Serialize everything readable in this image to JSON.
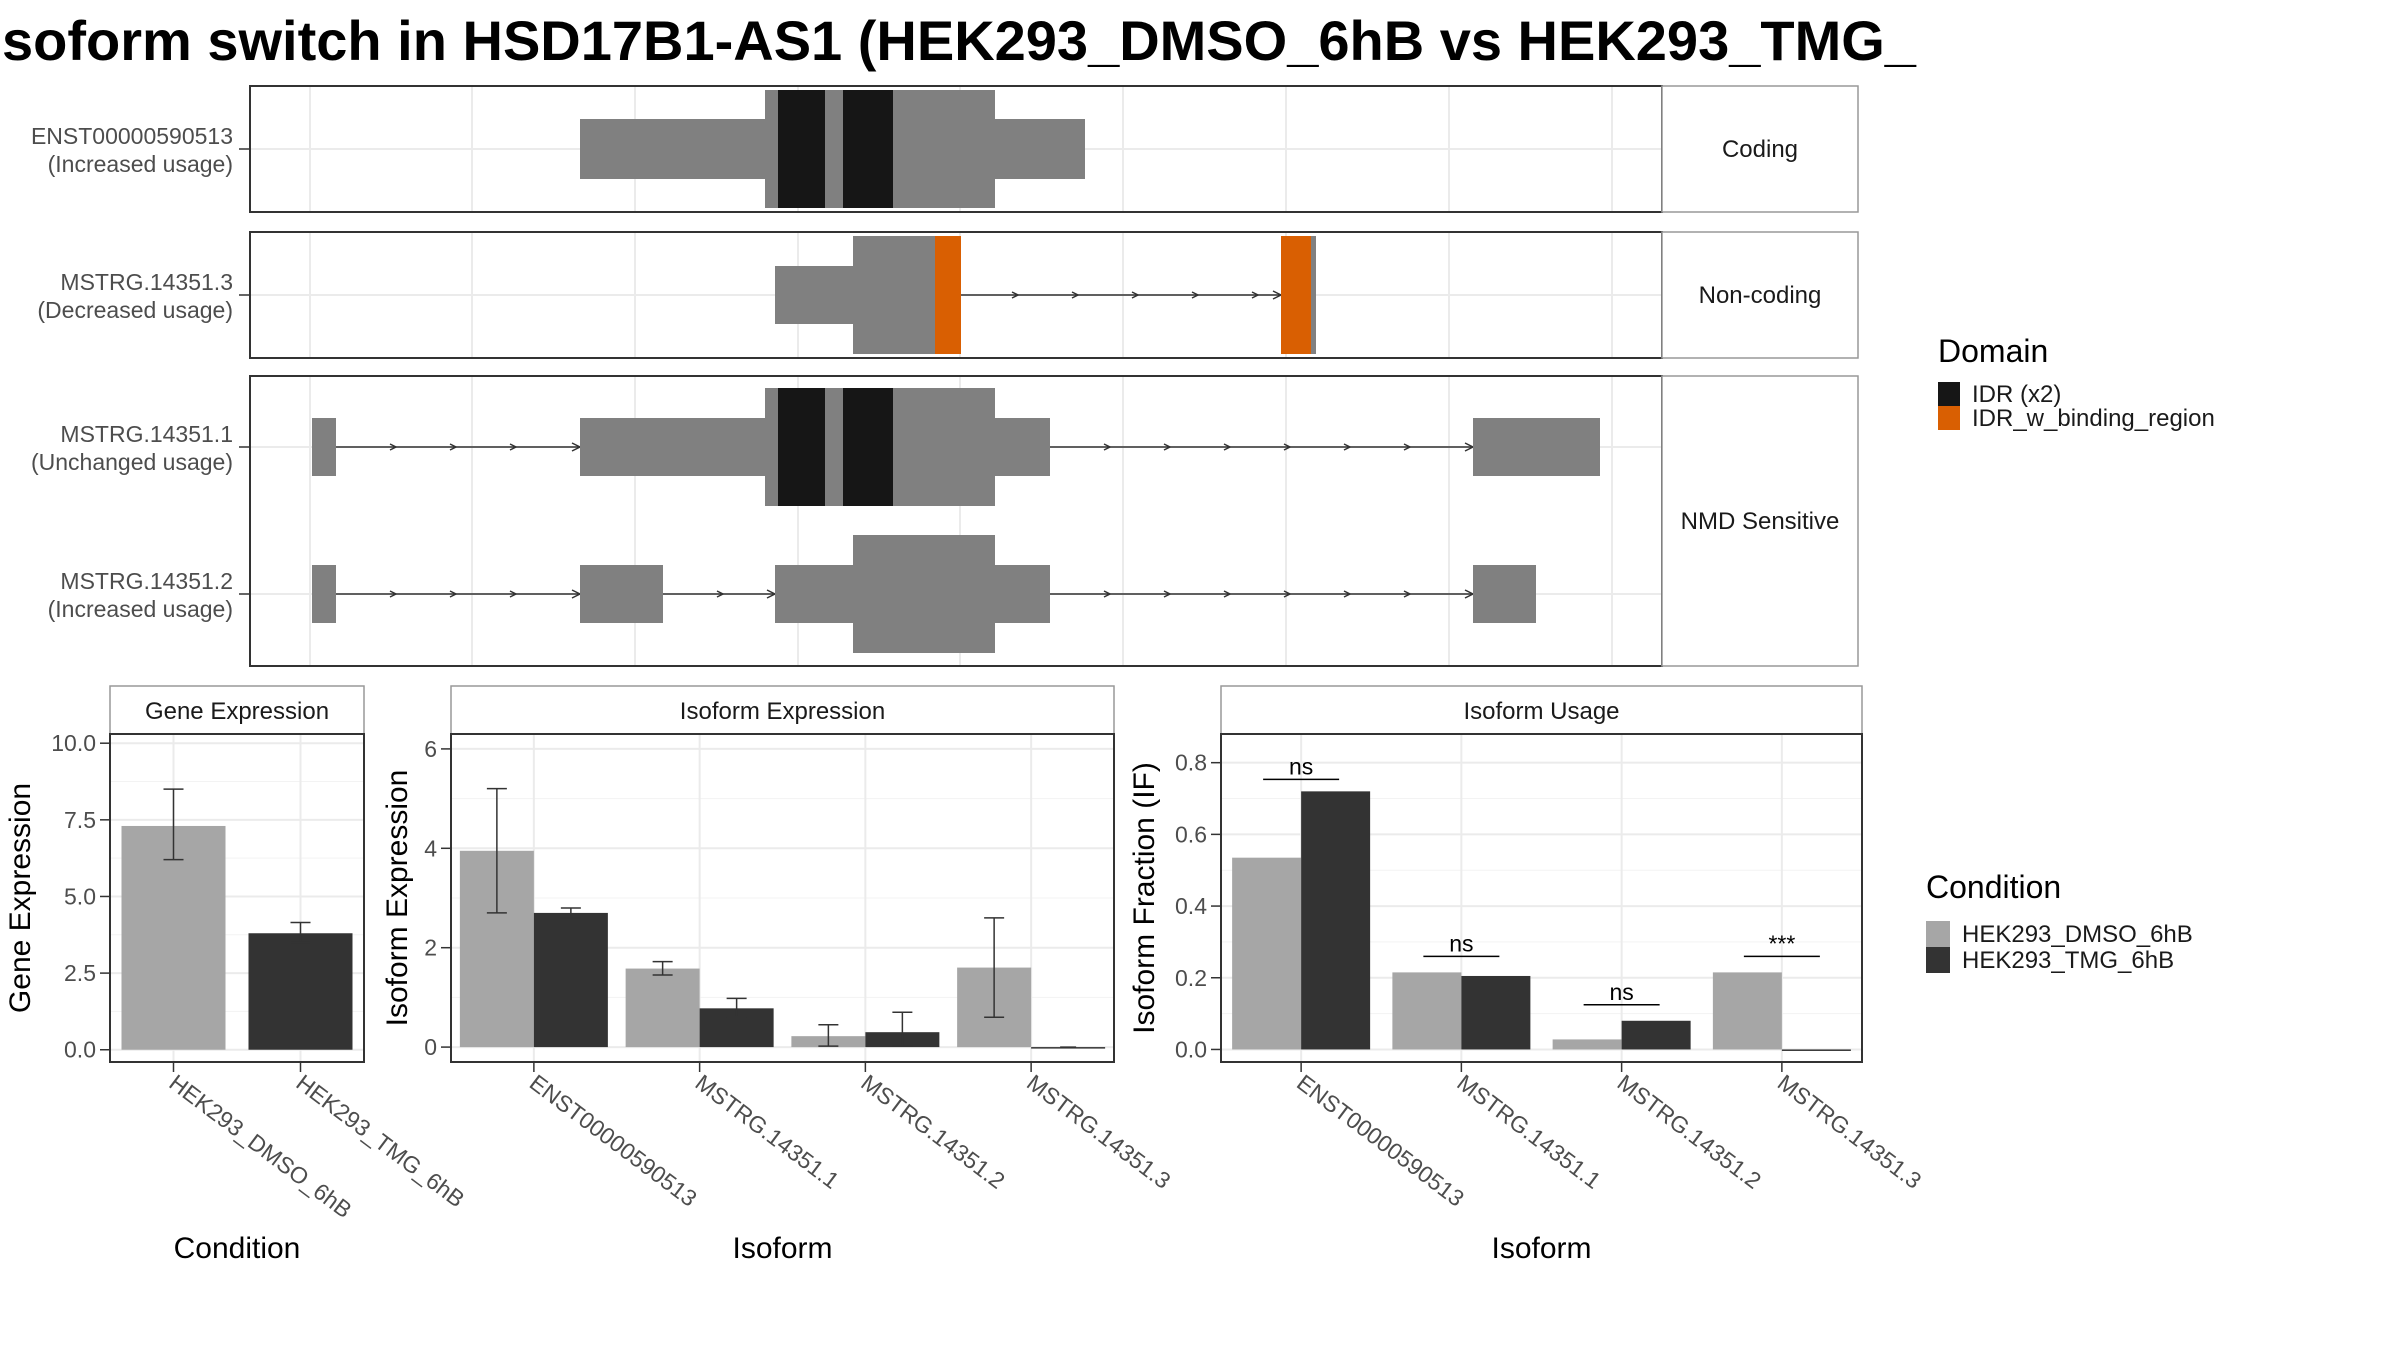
{
  "title": "soform switch in HSD17B1-AS1 (HEK293_DMSO_6hB vs HEK293_TMG_",
  "colors": {
    "idr": "#161616",
    "idr_binding": "#d95f02",
    "exon": "#808080",
    "dmso": "#a6a6a6",
    "tmg": "#333333",
    "grid": "#ebebeb"
  },
  "structure": {
    "isoforms": [
      {
        "id": "ENST00000590513",
        "usage": "(Increased usage)",
        "group": "Coding"
      },
      {
        "id": "MSTRG.14351.3",
        "usage": "(Decreased usage)",
        "group": "Non-coding"
      },
      {
        "id": "MSTRG.14351.1",
        "usage": "(Unchanged usage)",
        "group": "NMD Sensitive"
      },
      {
        "id": "MSTRG.14351.2",
        "usage": "(Increased usage)",
        "group": "NMD Sensitive"
      }
    ],
    "groups": [
      "Coding",
      "Non-coding",
      "NMD Sensitive"
    ]
  },
  "domain_legend": {
    "title": "Domain",
    "items": [
      {
        "label": "IDR (x2)",
        "color": "#161616"
      },
      {
        "label": "IDR_w_binding_region",
        "color": "#d95f02"
      }
    ]
  },
  "condition_legend": {
    "title": "Condition",
    "items": [
      {
        "label": "HEK293_DMSO_6hB",
        "color": "#a6a6a6"
      },
      {
        "label": "HEK293_TMG_6hB",
        "color": "#333333"
      }
    ]
  },
  "chart_data": [
    {
      "type": "bar",
      "title": "Gene Expression",
      "xlabel": "Condition",
      "ylabel": "Gene Expression",
      "categories": [
        "HEK293_DMSO_6hB",
        "HEK293_TMG_6hB"
      ],
      "values": [
        7.3,
        3.8
      ],
      "err_low": [
        6.2,
        3.5
      ],
      "err_high": [
        8.5,
        4.15
      ],
      "ylim": [
        -0.4,
        10.3
      ],
      "yticks": [
        "0.0",
        "2.5",
        "5.0",
        "7.5",
        "10.0"
      ]
    },
    {
      "type": "bar",
      "title": "Isoform Expression",
      "xlabel": "Isoform",
      "ylabel": "Isoform Expression",
      "categories": [
        "ENST00000590513",
        "MSTRG.14351.1",
        "MSTRG.14351.2",
        "MSTRG.14351.3"
      ],
      "series": [
        {
          "values": [
            3.95,
            1.58,
            0.22,
            1.6
          ],
          "err_low": [
            2.7,
            1.45,
            0.02,
            0.6
          ],
          "err_high": [
            5.2,
            1.72,
            0.45,
            2.6
          ]
        },
        {
          "values": [
            2.7,
            0.78,
            0.3,
            0.0
          ],
          "err_low": [
            2.6,
            0.6,
            0.02,
            0.0
          ],
          "err_high": [
            2.8,
            0.98,
            0.7,
            0.0
          ]
        }
      ],
      "ylim": [
        -0.3,
        6.3
      ],
      "yticks": [
        "0",
        "2",
        "4",
        "6"
      ]
    },
    {
      "type": "bar",
      "title": "Isoform Usage",
      "xlabel": "Isoform",
      "ylabel": "Isoform Fraction (IF)",
      "categories": [
        "ENST00000590513",
        "MSTRG.14351.1",
        "MSTRG.14351.2",
        "MSTRG.14351.3"
      ],
      "series": [
        {
          "values": [
            0.535,
            0.215,
            0.028,
            0.215
          ]
        },
        {
          "values": [
            0.72,
            0.205,
            0.08,
            0.0
          ]
        }
      ],
      "significance": [
        "ns",
        "ns",
        "ns",
        "***"
      ],
      "ylim": [
        -0.035,
        0.88
      ],
      "yticks": [
        "0.0",
        "0.2",
        "0.4",
        "0.6",
        "0.8"
      ]
    }
  ]
}
